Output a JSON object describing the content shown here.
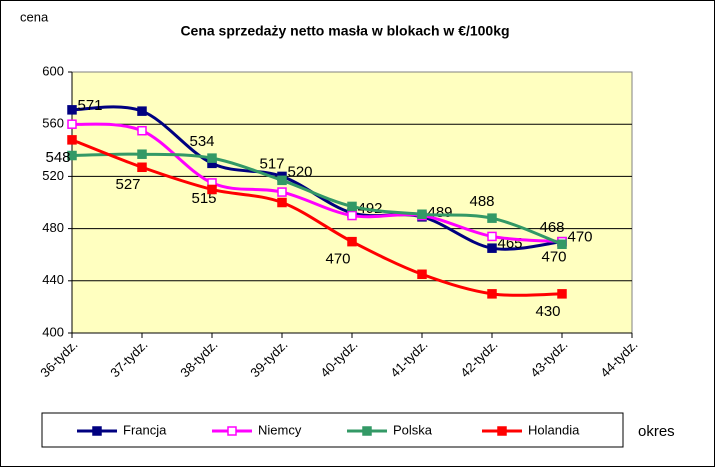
{
  "chart_data": {
    "type": "line",
    "title": "Cena sprzedaży netto masła  w blokach  w €/100kg",
    "y_label": "cena",
    "x_label": "okres",
    "categories": [
      "36-tydz.",
      "37-tydz.",
      "38-tydz.",
      "39-tydz.",
      "40-tydz.",
      "41-tydz.",
      "42-tydz.",
      "43-tydz.",
      "44-tydz."
    ],
    "ylim": [
      400,
      600
    ],
    "yticks": [
      400,
      440,
      480,
      520,
      560,
      600
    ],
    "grid": true,
    "smooth": true,
    "legend": "bottom",
    "series": [
      {
        "name": "Francja",
        "color": "#000080",
        "values": [
          571,
          570,
          530,
          520,
          492,
          489,
          465,
          470,
          null
        ],
        "value_labels": [
          "571",
          null,
          null,
          "520",
          "492",
          "489",
          "465",
          "470",
          null
        ]
      },
      {
        "name": "Niemcy",
        "color": "#ff00ff",
        "values": [
          560,
          555,
          515,
          508,
          490,
          490,
          474,
          470,
          null
        ],
        "value_labels": [
          null,
          null,
          "515",
          null,
          null,
          null,
          null,
          "470",
          null
        ]
      },
      {
        "name": "Polska",
        "color": "#339966",
        "values": [
          536,
          537,
          534,
          517,
          497,
          491,
          488,
          468,
          null
        ],
        "value_labels": [
          null,
          null,
          "534",
          "517",
          null,
          null,
          "488",
          "468",
          null
        ]
      },
      {
        "name": "Holandia",
        "color": "#ff0000",
        "values": [
          548,
          527,
          510,
          500,
          470,
          445,
          430,
          430,
          null
        ],
        "value_labels": [
          "548",
          "527",
          null,
          null,
          "470",
          null,
          null,
          "430",
          null
        ]
      }
    ]
  }
}
